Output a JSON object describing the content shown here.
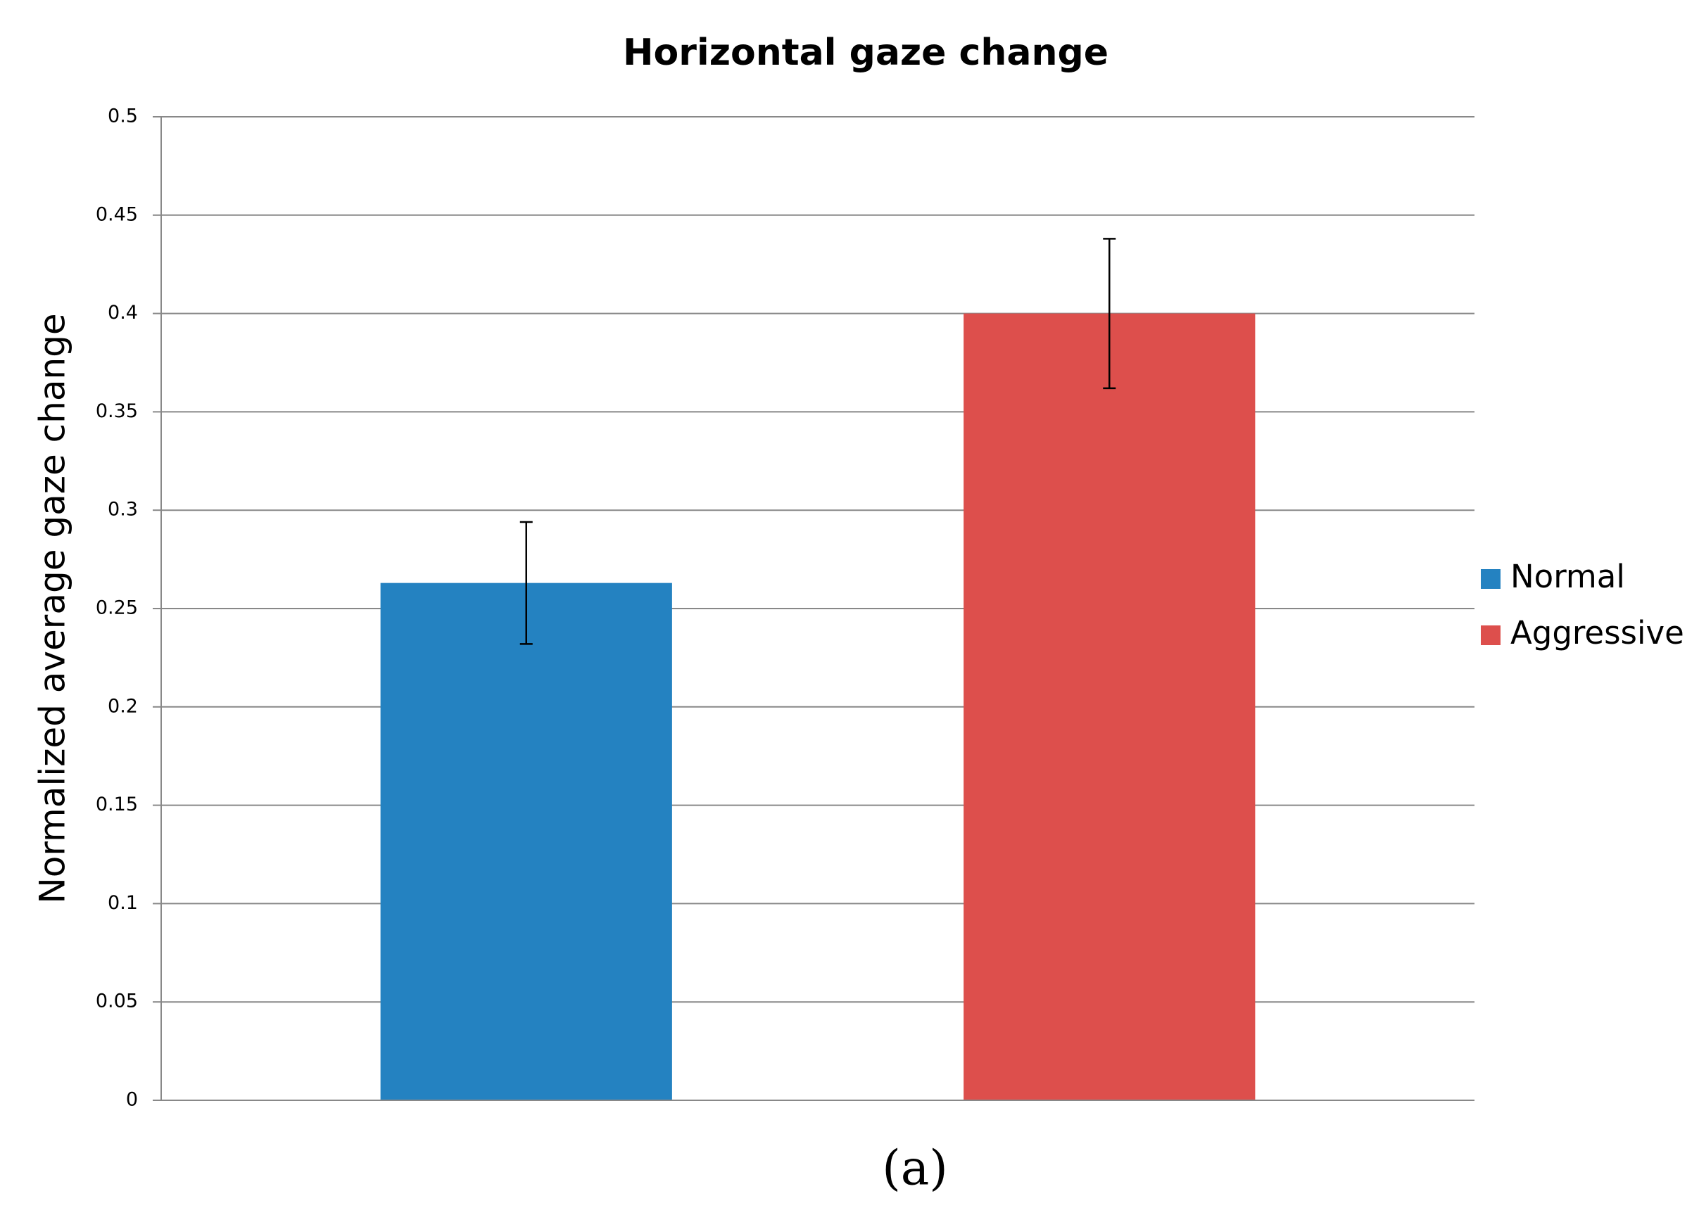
{
  "chart_data": {
    "type": "bar",
    "title": "Horizontal gaze change",
    "y_label": "Normalized average gaze change",
    "caption": "(a)",
    "categories": [
      null
    ],
    "series": [
      {
        "name": "Normal",
        "color": "#2482c1",
        "values": [
          0.263
        ],
        "errors": [
          0.031
        ]
      },
      {
        "name": "Aggressive",
        "color": "#dd4f4c",
        "values": [
          0.4
        ],
        "errors": [
          0.038
        ]
      }
    ],
    "ylim": [
      0,
      0.5
    ],
    "yticks": [
      0,
      0.05,
      0.1,
      0.15,
      0.2,
      0.25,
      0.3,
      0.35,
      0.4,
      0.45,
      0.5
    ],
    "grid": true,
    "legend": "right"
  }
}
